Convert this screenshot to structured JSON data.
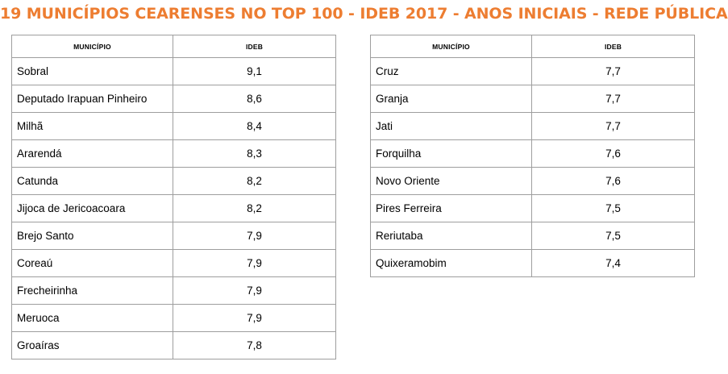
{
  "title": "19 MUNICÍPIOS CEARENSES NO TOP 100 - IDEB 2017 - ANOS INICIAIS - REDE PÚBLICA",
  "columns": {
    "municipio": "MUNICÍPIO",
    "ideb": "IDEB"
  },
  "left_table": {
    "rows": [
      {
        "municipio": "Sobral",
        "ideb": "9,1"
      },
      {
        "municipio": "Deputado Irapuan Pinheiro",
        "ideb": "8,6"
      },
      {
        "municipio": "Milhã",
        "ideb": "8,4"
      },
      {
        "municipio": "Ararendá",
        "ideb": "8,3"
      },
      {
        "municipio": "Catunda",
        "ideb": "8,2"
      },
      {
        "municipio": "Jijoca de Jericoacoara",
        "ideb": "8,2"
      },
      {
        "municipio": "Brejo Santo",
        "ideb": "7,9"
      },
      {
        "municipio": "Coreaú",
        "ideb": "7,9"
      },
      {
        "municipio": "Frecheirinha",
        "ideb": "7,9"
      },
      {
        "municipio": "Meruoca",
        "ideb": "7,9"
      },
      {
        "municipio": "Groaíras",
        "ideb": "7,8"
      }
    ]
  },
  "right_table": {
    "rows": [
      {
        "municipio": "Cruz",
        "ideb": "7,7"
      },
      {
        "municipio": "Granja",
        "ideb": "7,7"
      },
      {
        "municipio": "Jati",
        "ideb": "7,7"
      },
      {
        "municipio": "Forquilha",
        "ideb": "7,6"
      },
      {
        "municipio": "Novo Oriente",
        "ideb": "7,6"
      },
      {
        "municipio": "Pires Ferreira",
        "ideb": "7,5"
      },
      {
        "municipio": "Reriutaba",
        "ideb": "7,5"
      },
      {
        "municipio": "Quixeramobim",
        "ideb": "7,4"
      }
    ]
  },
  "colors": {
    "title": "#ED7D31",
    "border": "#9e9e9e"
  }
}
